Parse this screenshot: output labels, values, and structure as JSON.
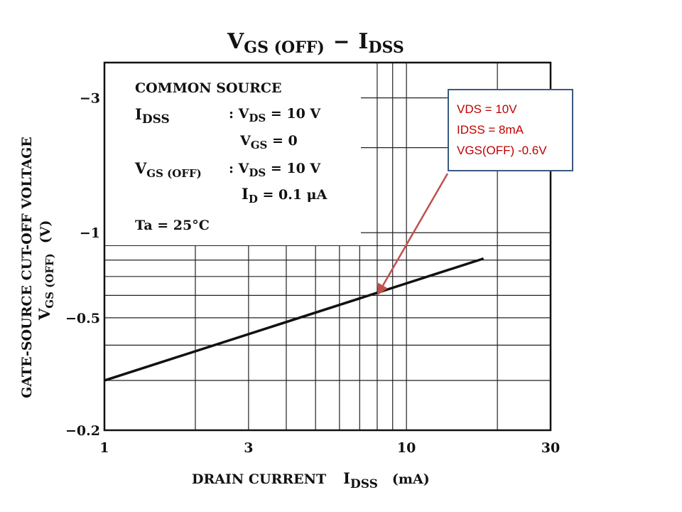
{
  "chart_data": {
    "type": "line",
    "title": "VGS (OFF) − IDSS",
    "title_parts": {
      "v": "V",
      "v_sub": "GS (OFF)",
      "dash": "−",
      "i": "I",
      "i_sub": "DSS"
    },
    "x_scale": "log",
    "y_scale": "log",
    "xlim": [
      1,
      30
    ],
    "ylim": [
      -0.2,
      -4
    ],
    "x_ticks": [
      {
        "value": 1,
        "label": "1"
      },
      {
        "value": 3,
        "label": "3"
      },
      {
        "value": 10,
        "label": "10"
      },
      {
        "value": 30,
        "label": "30"
      }
    ],
    "y_ticks": [
      {
        "value": -3,
        "label": "−3"
      },
      {
        "value": -1,
        "label": "−1"
      },
      {
        "value": -0.5,
        "label": "−0.5"
      },
      {
        "value": -0.2,
        "label": "−0.2"
      }
    ],
    "x_grid": [
      2,
      3,
      4,
      5,
      6,
      7,
      8,
      9,
      10,
      20
    ],
    "y_grid": [
      -0.3,
      -0.4,
      -0.5,
      -0.6,
      -0.7,
      -0.8,
      -0.9,
      -1,
      -2,
      -3,
      -4
    ],
    "xlabel": {
      "main": "DRAIN CURRENT",
      "i": "I",
      "i_sub": "DSS",
      "unit": "(mA)"
    },
    "ylabel": {
      "line1": "GATE-SOURCE CUT-OFF VOLTAGE",
      "v": "V",
      "v_sub": "GS (OFF)",
      "unit": "(V)"
    },
    "series": [
      {
        "x": [
          1,
          18
        ],
        "y": [
          -0.3,
          -0.81
        ]
      }
    ],
    "annotation_point": {
      "x": 8,
      "y": -0.6
    },
    "grid": true
  },
  "conditions": {
    "heading": "COMMON SOURCE",
    "idss_label": "I",
    "idss_sub": "DSS",
    "idss_vds_colon": ": V",
    "idss_vds_sub": "DS",
    "idss_vds_value": " = 10 V",
    "idss_vgs": "V",
    "idss_vgs_sub": "GS",
    "idss_vgs_value": " = 0",
    "vgsoff_label": "V",
    "vgsoff_sub": "GS (OFF)",
    "vgsoff_vds_colon": ": V",
    "vgsoff_vds_sub": "DS",
    "vgsoff_vds_value": " = 10 V",
    "vgsoff_id": "I",
    "vgsoff_id_sub": "D",
    "vgsoff_id_value": " = 0.1 μA",
    "ta": "Ta = 25°C"
  },
  "callout": {
    "lines": [
      "VDS = 10V",
      "IDSS = 8mA",
      "VGS(OFF) -0.6V"
    ],
    "border_color": "#3b5a80",
    "text_color": "#c00000",
    "arrow_color": "#c0504d"
  }
}
